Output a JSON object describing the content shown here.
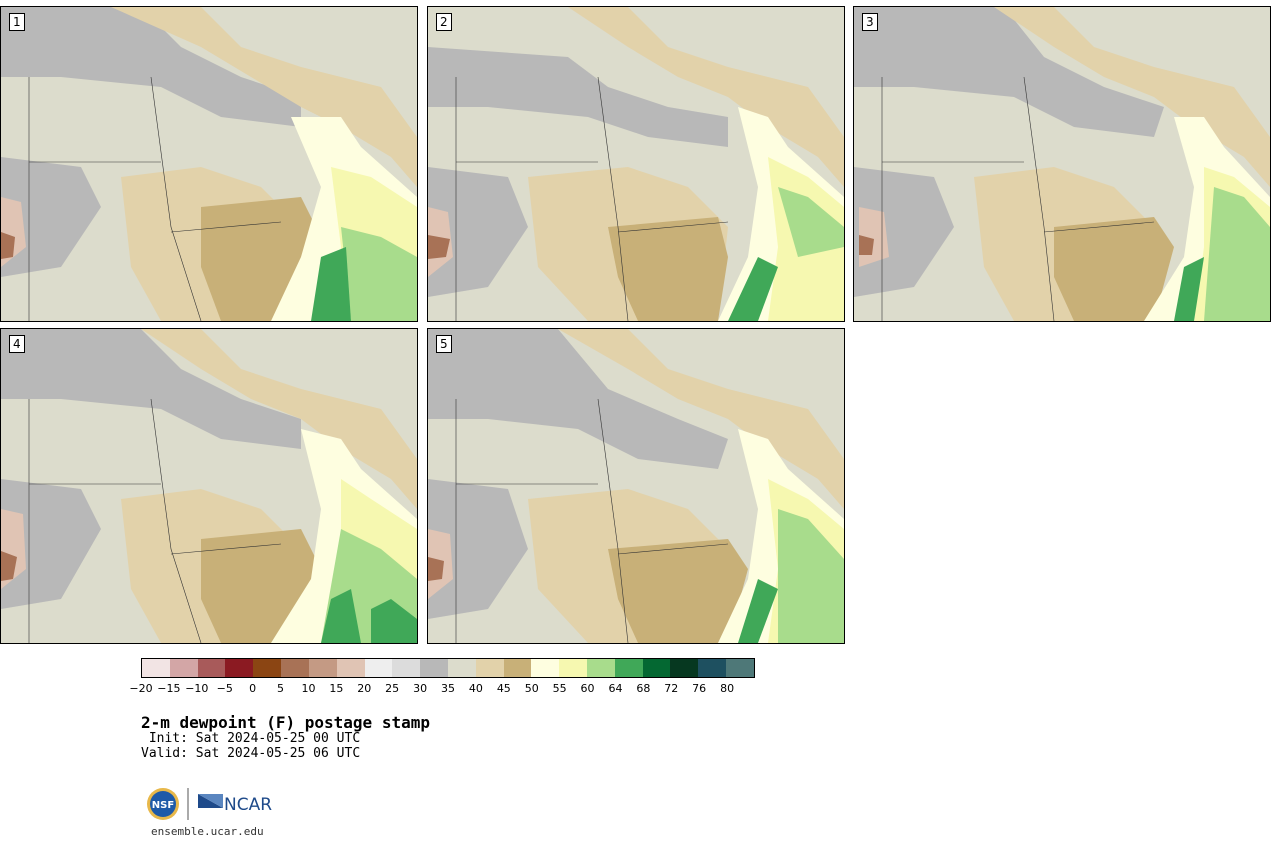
{
  "figure": {
    "title": "2-m dewpoint (F) postage stamp",
    "init_line": " Init: Sat 2024-05-25 00 UTC",
    "valid_line": "Valid: Sat 2024-05-25 06 UTC",
    "website": "ensemble.ucar.edu",
    "logos": [
      "NSF",
      "NCAR"
    ]
  },
  "panels": [
    {
      "label": "1"
    },
    {
      "label": "2"
    },
    {
      "label": "3"
    },
    {
      "label": "4"
    },
    {
      "label": "5"
    }
  ],
  "colorbar": {
    "colors": [
      "#f2e4e4",
      "#d3a6a6",
      "#a85a5a",
      "#8b1a22",
      "#8b4513",
      "#a87256",
      "#c49a84",
      "#e0c4b4",
      "#eeeeee",
      "#dcdcdc",
      "#b8b8b8",
      "#dcdccc",
      "#e2d2aa",
      "#c8b078",
      "#fefee0",
      "#f6f8b0",
      "#a8dc8c",
      "#40a858",
      "#046832",
      "#063820",
      "#1e5060",
      "#4e7878"
    ],
    "tick_labels": [
      "−20",
      "−15",
      "−10",
      "−5",
      "0",
      "5",
      "10",
      "15",
      "20",
      "25",
      "30",
      "35",
      "40",
      "45",
      "50",
      "55",
      "60",
      "64",
      "68",
      "72",
      "76",
      "80"
    ]
  },
  "colors": {
    "gray": "#b8b8b8",
    "light_gray": "#dcdccc",
    "tan": "#e2d2aa",
    "brown": "#c8b078",
    "pale_yellow": "#fefee0",
    "yellow": "#f6f8b0",
    "light_green": "#a8dc8c",
    "green": "#40a858",
    "pink": "#e0c4b4",
    "red_brown": "#a87256",
    "ncar_blue": "#1e4a8a"
  }
}
